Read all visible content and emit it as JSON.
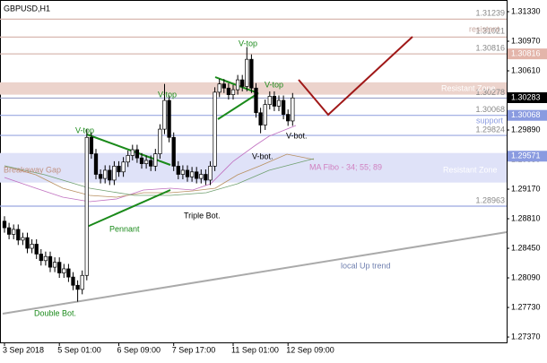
{
  "chart_data": {
    "type": "candlestick",
    "title": "GBPUSD,H1",
    "ylim": [
      1.27294,
      1.31472
    ],
    "yticks": [
      {
        "value": 1.2737,
        "label": "1.27370"
      },
      {
        "value": 1.2773,
        "label": "1.27730"
      },
      {
        "value": 1.2809,
        "label": "1.28090"
      },
      {
        "value": 1.2845,
        "label": "1.28450"
      },
      {
        "value": 1.2881,
        "label": "1.28810"
      },
      {
        "value": 1.2917,
        "label": "1.29170"
      },
      {
        "value": 1.2953,
        "label": "1.29530"
      },
      {
        "value": 1.2989,
        "label": "1.29890"
      },
      {
        "value": 1.3061,
        "label": "1.30610"
      },
      {
        "value": 1.3097,
        "label": "1.30970"
      },
      {
        "value": 1.3133,
        "label": "1.31330"
      }
    ],
    "categories": [
      "3 Sep 2018",
      null,
      null,
      null,
      null,
      null,
      null,
      null,
      null,
      null,
      null,
      null,
      "5 Sep 01:00",
      null,
      null,
      null,
      null,
      null,
      null,
      null,
      null,
      null,
      null,
      null,
      null,
      "6 Sep 09:00",
      null,
      null,
      null,
      null,
      null,
      null,
      null,
      null,
      null,
      null,
      null,
      "7 Sep 17:00",
      null,
      null,
      null,
      null,
      null,
      null,
      null,
      null,
      null,
      null,
      null,
      null,
      "11 Sep 01:00",
      null,
      null,
      null,
      null,
      null,
      null,
      null,
      null,
      null,
      null,
      null,
      "12 Sep 09:00",
      null
    ],
    "open": [
      1.2878,
      1.287,
      1.2862,
      1.2868,
      1.2855,
      1.2858,
      1.2845,
      1.285,
      1.2838,
      1.283,
      1.2835,
      1.2822,
      1.2828,
      1.2815,
      1.282,
      1.281,
      1.28,
      1.2795,
      1.2812,
      1.298,
      1.296,
      1.2935,
      1.293,
      1.294,
      1.2928,
      1.2945,
      1.2938,
      1.295,
      1.2958,
      1.2965,
      1.2955,
      1.2948,
      1.2952,
      1.2945,
      1.296,
      1.299,
      1.3025,
      1.298,
      1.2945,
      1.2935,
      1.294,
      1.2932,
      1.2938,
      1.293,
      1.2935,
      1.2928,
      1.2945,
      1.3035,
      1.3045,
      1.304,
      1.3032,
      1.3038,
      1.305,
      1.3042,
      1.3075,
      1.304,
      1.301,
      1.2995,
      1.302,
      1.303,
      1.3018,
      1.3025,
      1.3008,
      1.3
    ],
    "high": [
      1.2884,
      1.2876,
      1.2874,
      1.2874,
      1.2864,
      1.2864,
      1.2856,
      1.2856,
      1.2844,
      1.2841,
      1.2841,
      1.2834,
      1.2834,
      1.2826,
      1.2826,
      1.2816,
      1.2806,
      1.2818,
      1.299,
      1.2986,
      1.2966,
      1.2941,
      1.2946,
      1.2946,
      1.2951,
      1.2951,
      1.2956,
      1.2964,
      1.2971,
      1.2971,
      1.2961,
      1.2958,
      1.2958,
      1.2966,
      1.2996,
      1.3045,
      1.3031,
      1.2986,
      1.2951,
      1.2946,
      1.2946,
      1.2944,
      1.2944,
      1.2941,
      1.2941,
      1.2951,
      1.3041,
      1.3051,
      1.3051,
      1.3046,
      1.3044,
      1.3056,
      1.3056,
      1.309,
      1.3081,
      1.3046,
      1.3016,
      1.3026,
      1.3036,
      1.3036,
      1.3031,
      1.3031,
      1.3014,
      1.3034
    ],
    "low": [
      1.2864,
      1.2856,
      1.2856,
      1.2849,
      1.2849,
      1.2839,
      1.2839,
      1.2832,
      1.2824,
      1.2824,
      1.2816,
      1.2816,
      1.2809,
      1.2809,
      1.2804,
      1.2794,
      1.278,
      1.2789,
      1.2806,
      1.2954,
      1.2929,
      1.2924,
      1.2924,
      1.2922,
      1.2922,
      1.2932,
      1.2932,
      1.2944,
      1.2952,
      1.2949,
      1.2942,
      1.2942,
      1.2939,
      1.2939,
      1.2954,
      1.2984,
      1.2974,
      1.2939,
      1.2929,
      1.2929,
      1.2926,
      1.2926,
      1.2924,
      1.2924,
      1.2922,
      1.2922,
      1.2939,
      1.3029,
      1.3034,
      1.3026,
      1.3026,
      1.3032,
      1.3036,
      1.3036,
      1.3034,
      1.3004,
      1.2985,
      1.2989,
      1.3014,
      1.3012,
      1.3012,
      1.3002,
      1.2994,
      1.2994
    ],
    "close": [
      1.287,
      1.2862,
      1.2868,
      1.2855,
      1.2858,
      1.2845,
      1.285,
      1.2838,
      1.283,
      1.2835,
      1.2822,
      1.2828,
      1.2815,
      1.282,
      1.281,
      1.28,
      1.2795,
      1.2812,
      1.298,
      1.296,
      1.2935,
      1.293,
      1.294,
      1.2928,
      1.2945,
      1.2938,
      1.295,
      1.2958,
      1.2965,
      1.2955,
      1.2948,
      1.2952,
      1.2945,
      1.296,
      1.299,
      1.3025,
      1.298,
      1.2945,
      1.2935,
      1.294,
      1.2932,
      1.2938,
      1.293,
      1.2935,
      1.2928,
      1.2945,
      1.3035,
      1.3045,
      1.304,
      1.3032,
      1.3038,
      1.305,
      1.3042,
      1.3075,
      1.304,
      1.301,
      1.2995,
      1.302,
      1.303,
      1.3018,
      1.3025,
      1.3008,
      1.3,
      1.3028
    ],
    "levels": [
      {
        "value": 1.31239,
        "color": "#d8b8b0"
      },
      {
        "value": 1.31021,
        "color": "#d8b8b0"
      },
      {
        "value": 1.30816,
        "color": "#d8b8b0"
      },
      {
        "value": 1.30278,
        "color": "#9aa0c8"
      },
      {
        "value": 1.30068,
        "color": "#9aa8e0"
      },
      {
        "value": 1.29824,
        "color": "#9aa8e0"
      },
      {
        "value": 1.28963,
        "color": "#9aa8e0"
      }
    ],
    "zones": [
      {
        "range": [
          1.3032,
          1.3047
        ],
        "color": "#ecd3cc"
      },
      {
        "range": [
          1.2925,
          1.2961
        ],
        "color": "#dfe2f8"
      }
    ],
    "price_badges": [
      {
        "value": 1.30816,
        "color": "#e3b5aa"
      },
      {
        "value": 1.30283,
        "color": "#000000"
      },
      {
        "value": 1.30068,
        "color": "#8a9be0"
      },
      {
        "value": 1.29571,
        "color": "#8a9be0"
      }
    ],
    "annotations": [
      "resistant",
      "Resistant Zone",
      "support",
      "MA Fibo - 34; 55; 89",
      "Breakaway Gap",
      "Resistant Zone",
      "V-top",
      "V-top",
      "V-top",
      "V-top",
      "Pennant",
      "Triple Bot.",
      "V-bot.",
      "V-bot.",
      "Double Bot.",
      "local Up trend"
    ]
  }
}
